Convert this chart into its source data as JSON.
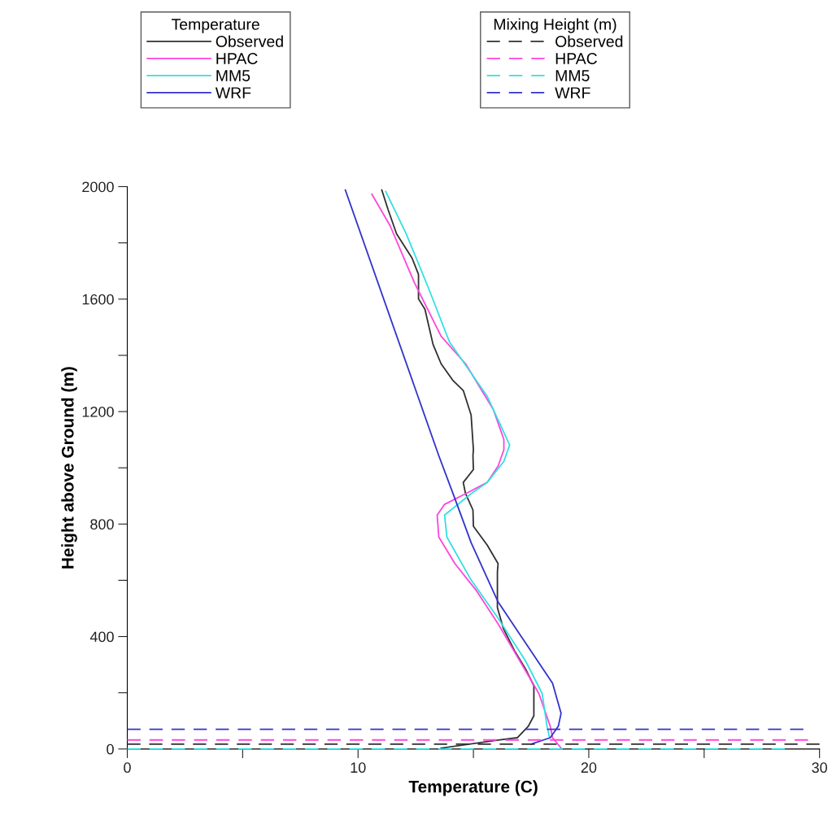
{
  "chart_data": {
    "type": "line",
    "xlabel": "Temperature (C)",
    "ylabel": "Height above Ground (m)",
    "legend_title": [
      "Temperature",
      "Mixing Height (m)"
    ],
    "xlim": [
      0,
      30
    ],
    "xticks": [
      0,
      {
        "value": 5,
        "label": null
      },
      10,
      {
        "value": 15,
        "label": null
      },
      20,
      {
        "value": 25,
        "label": null
      },
      30
    ],
    "ylim": [
      0,
      2000
    ],
    "yticks": [
      0,
      {
        "value": 200,
        "label": null
      },
      400,
      {
        "value": 600,
        "label": null
      },
      800,
      {
        "value": 1000,
        "label": null
      },
      1200,
      {
        "value": 1400,
        "label": null
      },
      1600,
      {
        "value": 1800,
        "label": null
      },
      2000
    ],
    "grid": false,
    "legend": "top",
    "line_style": "solid",
    "series": [
      {
        "name": "Observed",
        "color": "#303030",
        "x": [
          13.6,
          16.07,
          16.9,
          17.38,
          17.62,
          17.62,
          17.27,
          16.78,
          16.3,
          16.04,
          16.04,
          16.07,
          15.6,
          15.0,
          14.98,
          14.66,
          14.56,
          15.0,
          14.98,
          15.0,
          14.9,
          14.56,
          14.1,
          13.6,
          13.25,
          12.9,
          12.62,
          12.62,
          12.34,
          11.67,
          11.3,
          11.03
        ],
        "values": [
          3,
          32,
          40,
          81,
          118,
          225,
          283,
          350,
          428,
          503,
          630,
          659,
          725,
          792,
          850,
          908,
          948,
          994,
          1043,
          1064,
          1188,
          1275,
          1312,
          1370,
          1439,
          1564,
          1601,
          1688,
          1746,
          1832,
          1919,
          1988
        ]
      },
      {
        "name": "HPAC",
        "color": "#ff44dd",
        "x": [
          18.8,
          18.43,
          18.33,
          17.84,
          17.02,
          16.07,
          15.15,
          14.2,
          13.5,
          13.43,
          13.75,
          14.66,
          15.6,
          16.07,
          16.32,
          16.32,
          15.86,
          14.66,
          13.6,
          12.44,
          11.39,
          10.6
        ],
        "values": [
          3,
          40,
          81,
          197,
          312,
          445,
          561,
          659,
          754,
          832,
          870,
          908,
          948,
          1006,
          1064,
          1101,
          1208,
          1370,
          1468,
          1659,
          1861,
          1973
        ]
      },
      {
        "name": "MM5",
        "color": "#33e0e0",
        "x": [
          18.3,
          18.19,
          17.98,
          17.27,
          16.07,
          14.9,
          13.85,
          13.75,
          14.9,
          15.6,
          16.32,
          16.57,
          15.6,
          13.96,
          13.04,
          12.09,
          11.2
        ],
        "values": [
          40,
          81,
          197,
          312,
          465,
          601,
          754,
          832,
          908,
          948,
          1023,
          1081,
          1254,
          1448,
          1642,
          1832,
          1983
        ]
      },
      {
        "name": "WRF",
        "color": "#3333cc",
        "x": [
          17.5,
          18.33,
          18.68,
          18.8,
          18.43,
          17.48,
          16.07,
          14.9,
          14.2,
          13.5,
          9.45
        ],
        "values": [
          17,
          40,
          81,
          127,
          234,
          350,
          523,
          734,
          890,
          1043,
          1988
        ]
      },
      {
        "name": "Observed",
        "color": "#303030",
        "line_style": "dashed",
        "x": [
          0,
          30
        ],
        "values": [
          17,
          17
        ]
      },
      {
        "name": "HPAC",
        "color": "#ff44dd",
        "line_style": "dashed",
        "x": [
          0,
          29.5
        ],
        "values": [
          32,
          32
        ]
      },
      {
        "name": "MM5",
        "color": "#33e0e0",
        "line_style": "dashed",
        "x": [
          0,
          28.5
        ],
        "values": [
          0,
          0
        ]
      },
      {
        "name": "WRF",
        "color": "#3333cc",
        "line_style": "dashed",
        "x": [
          0,
          29.3
        ],
        "values": [
          70,
          70
        ]
      }
    ]
  }
}
